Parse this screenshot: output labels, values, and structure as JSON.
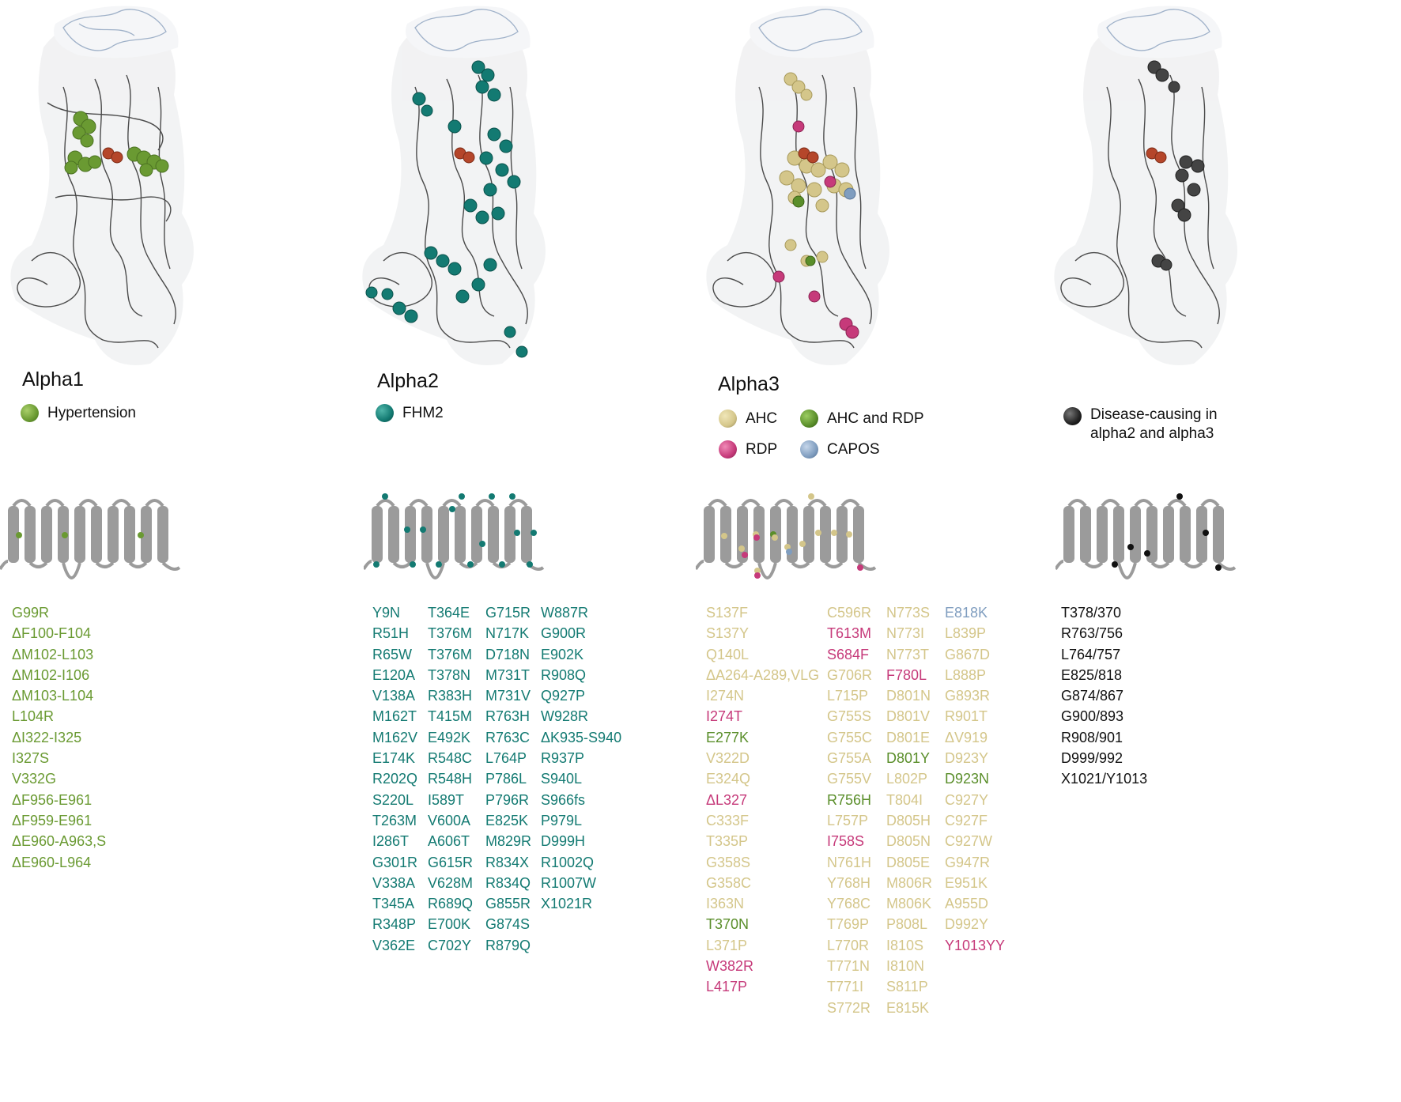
{
  "colors": {
    "hypertension": "#6a9a32",
    "fhm2": "#137a72",
    "ahc": "#d4c68a",
    "ahc_and_rdp": "#5a8e2a",
    "rdp": "#c63a7a",
    "capos": "#7f9dbf",
    "disease_both": "#111111",
    "cation_site": "#b5462a"
  },
  "panels": [
    {
      "title": "Alpha1",
      "legend": [
        {
          "label": "Hypertension",
          "color_key": "hypertension"
        }
      ],
      "columns": [
        [
          {
            "t": "G99R",
            "c": "hypertension"
          },
          {
            "t": "ΔF100-F104",
            "c": "hypertension"
          },
          {
            "t": "ΔM102-L103",
            "c": "hypertension"
          },
          {
            "t": "ΔM102-I106",
            "c": "hypertension"
          },
          {
            "t": "ΔM103-L104",
            "c": "hypertension"
          },
          {
            "t": "L104R",
            "c": "hypertension"
          },
          {
            "t": "ΔI322-I325",
            "c": "hypertension"
          },
          {
            "t": "I327S",
            "c": "hypertension"
          },
          {
            "t": "V332G",
            "c": "hypertension"
          },
          {
            "t": "ΔF956-E961",
            "c": "hypertension"
          },
          {
            "t": "ΔF959-E961",
            "c": "hypertension"
          },
          {
            "t": "ΔE960-A963,S",
            "c": "hypertension"
          },
          {
            "t": "ΔE960-L964",
            "c": "hypertension"
          }
        ]
      ]
    },
    {
      "title": "Alpha2",
      "legend": [
        {
          "label": "FHM2",
          "color_key": "fhm2"
        }
      ],
      "columns": [
        [
          {
            "t": "Y9N",
            "c": "fhm2"
          },
          {
            "t": "R51H",
            "c": "fhm2"
          },
          {
            "t": "R65W",
            "c": "fhm2"
          },
          {
            "t": "E120A",
            "c": "fhm2"
          },
          {
            "t": "V138A",
            "c": "fhm2"
          },
          {
            "t": "M162T",
            "c": "fhm2"
          },
          {
            "t": "M162V",
            "c": "fhm2"
          },
          {
            "t": "E174K",
            "c": "fhm2"
          },
          {
            "t": "R202Q",
            "c": "fhm2"
          },
          {
            "t": "S220L",
            "c": "fhm2"
          },
          {
            "t": "T263M",
            "c": "fhm2"
          },
          {
            "t": "I286T",
            "c": "fhm2"
          },
          {
            "t": "G301R",
            "c": "fhm2"
          },
          {
            "t": "V338A",
            "c": "fhm2"
          },
          {
            "t": "T345A",
            "c": "fhm2"
          },
          {
            "t": "R348P",
            "c": "fhm2"
          },
          {
            "t": "V362E",
            "c": "fhm2"
          }
        ],
        [
          {
            "t": "T364E",
            "c": "fhm2"
          },
          {
            "t": "T376M",
            "c": "fhm2"
          },
          {
            "t": "T376M",
            "c": "fhm2"
          },
          {
            "t": "T378N",
            "c": "fhm2"
          },
          {
            "t": "R383H",
            "c": "fhm2"
          },
          {
            "t": "T415M",
            "c": "fhm2"
          },
          {
            "t": "E492K",
            "c": "fhm2"
          },
          {
            "t": "R548C",
            "c": "fhm2"
          },
          {
            "t": "R548H",
            "c": "fhm2"
          },
          {
            "t": "I589T",
            "c": "fhm2"
          },
          {
            "t": "V600A",
            "c": "fhm2"
          },
          {
            "t": "A606T",
            "c": "fhm2"
          },
          {
            "t": "G615R",
            "c": "fhm2"
          },
          {
            "t": "V628M",
            "c": "fhm2"
          },
          {
            "t": "R689Q",
            "c": "fhm2"
          },
          {
            "t": "E700K",
            "c": "fhm2"
          },
          {
            "t": "C702Y",
            "c": "fhm2"
          }
        ],
        [
          {
            "t": "G715R",
            "c": "fhm2"
          },
          {
            "t": "N717K",
            "c": "fhm2"
          },
          {
            "t": "D718N",
            "c": "fhm2"
          },
          {
            "t": "M731T",
            "c": "fhm2"
          },
          {
            "t": "M731V",
            "c": "fhm2"
          },
          {
            "t": "R763H",
            "c": "fhm2"
          },
          {
            "t": "R763C",
            "c": "fhm2"
          },
          {
            "t": "L764P",
            "c": "fhm2"
          },
          {
            "t": "P786L",
            "c": "fhm2"
          },
          {
            "t": "P796R",
            "c": "fhm2"
          },
          {
            "t": "E825K",
            "c": "fhm2"
          },
          {
            "t": "M829R",
            "c": "fhm2"
          },
          {
            "t": "R834X",
            "c": "fhm2"
          },
          {
            "t": "R834Q",
            "c": "fhm2"
          },
          {
            "t": "G855R",
            "c": "fhm2"
          },
          {
            "t": "G874S",
            "c": "fhm2"
          },
          {
            "t": "R879Q",
            "c": "fhm2"
          }
        ],
        [
          {
            "t": "W887R",
            "c": "fhm2"
          },
          {
            "t": "G900R",
            "c": "fhm2"
          },
          {
            "t": "E902K",
            "c": "fhm2"
          },
          {
            "t": "R908Q",
            "c": "fhm2"
          },
          {
            "t": "Q927P",
            "c": "fhm2"
          },
          {
            "t": "W928R",
            "c": "fhm2"
          },
          {
            "t": "ΔK935-S940",
            "c": "fhm2"
          },
          {
            "t": "R937P",
            "c": "fhm2"
          },
          {
            "t": "S940L",
            "c": "fhm2"
          },
          {
            "t": "S966fs",
            "c": "fhm2"
          },
          {
            "t": "P979L",
            "c": "fhm2"
          },
          {
            "t": "D999H",
            "c": "fhm2"
          },
          {
            "t": "R1002Q",
            "c": "fhm2"
          },
          {
            "t": "R1007W",
            "c": "fhm2"
          },
          {
            "t": "X1021R",
            "c": "fhm2"
          }
        ]
      ]
    },
    {
      "title": "Alpha3",
      "legend": [
        {
          "label": "AHC",
          "color_key": "ahc"
        },
        {
          "label": "AHC and RDP",
          "color_key": "ahc_and_rdp"
        },
        {
          "label": "RDP",
          "color_key": "rdp"
        },
        {
          "label": "CAPOS",
          "color_key": "capos"
        }
      ],
      "columns": [
        [
          {
            "t": "S137F",
            "c": "ahc"
          },
          {
            "t": "S137Y",
            "c": "ahc"
          },
          {
            "t": "Q140L",
            "c": "ahc"
          },
          {
            "t": "ΔA264-A289,VLG",
            "c": "ahc"
          },
          {
            "t": "I274N",
            "c": "ahc"
          },
          {
            "t": "I274T",
            "c": "rdp"
          },
          {
            "t": "E277K",
            "c": "ahc_and_rdp"
          },
          {
            "t": "V322D",
            "c": "ahc"
          },
          {
            "t": "E324Q",
            "c": "ahc"
          },
          {
            "t": "ΔL327",
            "c": "rdp"
          },
          {
            "t": "C333F",
            "c": "ahc"
          },
          {
            "t": "T335P",
            "c": "ahc"
          },
          {
            "t": "G358S",
            "c": "ahc"
          },
          {
            "t": "G358C",
            "c": "ahc"
          },
          {
            "t": "I363N",
            "c": "ahc"
          },
          {
            "t": "T370N",
            "c": "ahc_and_rdp"
          },
          {
            "t": "L371P",
            "c": "ahc"
          },
          {
            "t": "W382R",
            "c": "rdp"
          },
          {
            "t": "L417P",
            "c": "rdp"
          }
        ],
        [
          {
            "t": "C596R",
            "c": "ahc"
          },
          {
            "t": "T613M",
            "c": "rdp"
          },
          {
            "t": "S684F",
            "c": "rdp"
          },
          {
            "t": "G706R",
            "c": "ahc"
          },
          {
            "t": "L715P",
            "c": "ahc"
          },
          {
            "t": "G755S",
            "c": "ahc"
          },
          {
            "t": "G755C",
            "c": "ahc"
          },
          {
            "t": "G755A",
            "c": "ahc"
          },
          {
            "t": "G755V",
            "c": "ahc"
          },
          {
            "t": "R756H",
            "c": "ahc_and_rdp"
          },
          {
            "t": "L757P",
            "c": "ahc"
          },
          {
            "t": "I758S",
            "c": "rdp"
          },
          {
            "t": "N761H",
            "c": "ahc"
          },
          {
            "t": "Y768H",
            "c": "ahc"
          },
          {
            "t": "Y768C",
            "c": "ahc"
          },
          {
            "t": "T769P",
            "c": "ahc"
          },
          {
            "t": "L770R",
            "c": "ahc"
          },
          {
            "t": "T771N",
            "c": "ahc"
          },
          {
            "t": "T771I",
            "c": "ahc"
          },
          {
            "t": "S772R",
            "c": "ahc"
          }
        ],
        [
          {
            "t": "N773S",
            "c": "ahc"
          },
          {
            "t": "N773I",
            "c": "ahc"
          },
          {
            "t": "N773T",
            "c": "ahc"
          },
          {
            "t": "F780L",
            "c": "rdp"
          },
          {
            "t": "D801N",
            "c": "ahc"
          },
          {
            "t": "D801V",
            "c": "ahc"
          },
          {
            "t": "D801E",
            "c": "ahc"
          },
          {
            "t": "D801Y",
            "c": "ahc_and_rdp"
          },
          {
            "t": "L802P",
            "c": "ahc"
          },
          {
            "t": "T804I",
            "c": "ahc"
          },
          {
            "t": "D805H",
            "c": "ahc"
          },
          {
            "t": "D805N",
            "c": "ahc"
          },
          {
            "t": "D805E",
            "c": "ahc"
          },
          {
            "t": "M806R",
            "c": "ahc"
          },
          {
            "t": "M806K",
            "c": "ahc"
          },
          {
            "t": "P808L",
            "c": "ahc"
          },
          {
            "t": "I810S",
            "c": "ahc"
          },
          {
            "t": "I810N",
            "c": "ahc"
          },
          {
            "t": "S811P",
            "c": "ahc"
          },
          {
            "t": "E815K",
            "c": "ahc"
          }
        ],
        [
          {
            "t": "E818K",
            "c": "capos"
          },
          {
            "t": "L839P",
            "c": "ahc"
          },
          {
            "t": "G867D",
            "c": "ahc"
          },
          {
            "t": "L888P",
            "c": "ahc"
          },
          {
            "t": "G893R",
            "c": "ahc"
          },
          {
            "t": "R901T",
            "c": "ahc"
          },
          {
            "t": "ΔV919",
            "c": "ahc"
          },
          {
            "t": "D923Y",
            "c": "ahc"
          },
          {
            "t": "D923N",
            "c": "ahc_and_rdp"
          },
          {
            "t": "C927Y",
            "c": "ahc"
          },
          {
            "t": "C927F",
            "c": "ahc"
          },
          {
            "t": "C927W",
            "c": "ahc"
          },
          {
            "t": "G947R",
            "c": "ahc"
          },
          {
            "t": "E951K",
            "c": "ahc"
          },
          {
            "t": "A955D",
            "c": "ahc"
          },
          {
            "t": "D992Y",
            "c": "ahc"
          },
          {
            "t": "Y1013YY",
            "c": "rdp"
          }
        ]
      ]
    },
    {
      "title": "",
      "legend": [
        {
          "label": "Disease-causing in\nalpha2 and alpha3",
          "color_key": "disease_both"
        }
      ],
      "columns": [
        [
          {
            "t": "T378/370",
            "c": "disease_both"
          },
          {
            "t": "R763/756",
            "c": "disease_both"
          },
          {
            "t": "L764/757",
            "c": "disease_both"
          },
          {
            "t": "E825/818",
            "c": "disease_both"
          },
          {
            "t": "G874/867",
            "c": "disease_both"
          },
          {
            "t": "G900/893",
            "c": "disease_both"
          },
          {
            "t": "R908/901",
            "c": "disease_both"
          },
          {
            "t": "D999/992",
            "c": "disease_both"
          },
          {
            "t": "X1021/Y1013",
            "c": "disease_both"
          }
        ]
      ]
    }
  ]
}
